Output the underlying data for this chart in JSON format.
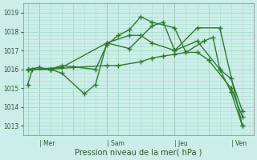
{
  "bg_color": "#cceee8",
  "grid_color": "#aaddcc",
  "line_color": "#2d7a2d",
  "line_color2": "#3a8a3a",
  "ylabel": "Pression niveau de la mer( hPa )",
  "ylim": [
    1012.5,
    1019.5
  ],
  "yticks": [
    1013,
    1014,
    1015,
    1016,
    1017,
    1018,
    1019
  ],
  "day_labels": [
    "Mer",
    "Sam",
    "Jeu",
    "Ven"
  ],
  "day_positions": [
    0.5,
    3.5,
    6.5,
    9.0
  ],
  "series": [
    [
      0.0,
      1015.2,
      0.2,
      1016.0,
      1.5,
      1016.1,
      3.5,
      1017.4,
      4.5,
      1017.8,
      5.0,
      1017.8,
      5.5,
      1017.4,
      6.5,
      1017.0,
      7.5,
      1018.2,
      8.5,
      1018.2,
      9.5,
      1013.0
    ],
    [
      0.0,
      1016.0,
      1.0,
      1016.0,
      1.5,
      1016.2,
      3.0,
      1016.0,
      3.5,
      1017.3,
      4.0,
      1017.8,
      4.5,
      1018.1,
      5.0,
      1018.8,
      5.5,
      1018.5,
      6.5,
      1018.2,
      7.0,
      1016.9,
      7.8,
      1017.5,
      8.2,
      1017.7,
      8.5,
      1016.0,
      9.0,
      1014.8,
      9.5,
      1013.0
    ],
    [
      0.0,
      1016.0,
      0.5,
      1016.1,
      1.0,
      1016.0,
      1.5,
      1015.8,
      2.5,
      1014.7,
      3.0,
      1015.2,
      3.5,
      1017.4,
      4.5,
      1017.1,
      5.5,
      1018.3,
      6.0,
      1018.5,
      6.5,
      1017.0,
      7.5,
      1017.5,
      8.5,
      1016.0,
      9.0,
      1015.5,
      9.5,
      1013.8
    ],
    [
      0.0,
      1016.0,
      1.0,
      1016.0,
      2.0,
      1016.1,
      3.5,
      1016.2,
      4.0,
      1016.2,
      5.0,
      1016.4,
      5.5,
      1016.6,
      6.0,
      1016.7,
      6.5,
      1016.8,
      7.0,
      1016.9,
      7.5,
      1016.9,
      8.0,
      1016.5,
      9.0,
      1015.0,
      9.5,
      1013.5
    ]
  ]
}
